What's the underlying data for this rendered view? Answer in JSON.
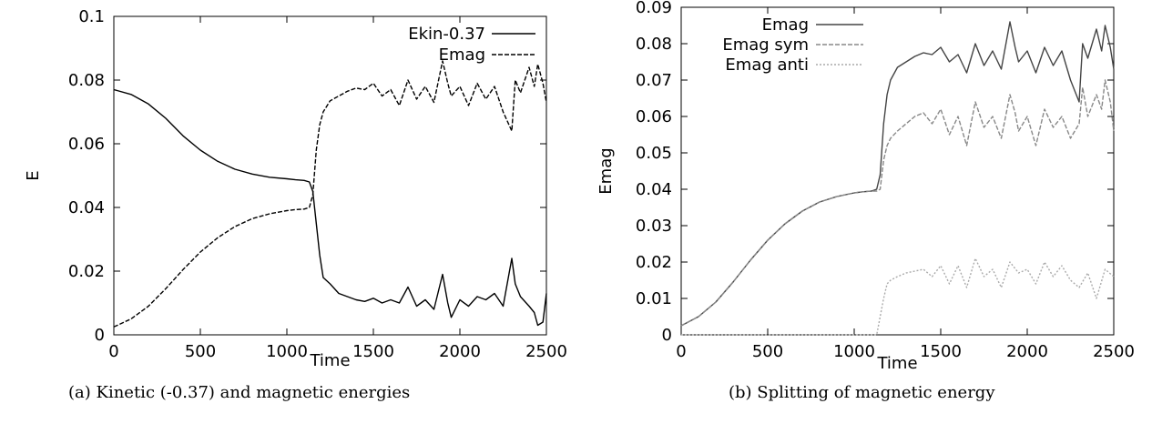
{
  "chart_data": [
    {
      "type": "line",
      "xlabel": "Time",
      "ylabel": "E",
      "caption": "(a) Kinetic (-0.37) and magnetic energies",
      "xlim": [
        0,
        2500
      ],
      "ylim": [
        0,
        0.1
      ],
      "xticks": [
        "0",
        "500",
        "1000",
        "1500",
        "2000",
        "2500"
      ],
      "yticks": [
        "0",
        "0.02",
        "0.04",
        "0.06",
        "0.08",
        "0.1"
      ],
      "legend_position": "top-right",
      "series": [
        {
          "name": "Ekin-0.37",
          "style": "solid",
          "color": "#000000",
          "x": [
            0,
            100,
            200,
            300,
            400,
            500,
            600,
            700,
            800,
            900,
            1000,
            1050,
            1100,
            1130,
            1150,
            1170,
            1190,
            1210,
            1250,
            1300,
            1350,
            1400,
            1450,
            1500,
            1550,
            1600,
            1650,
            1700,
            1750,
            1800,
            1850,
            1900,
            1930,
            1950,
            2000,
            2050,
            2100,
            2150,
            2200,
            2250,
            2300,
            2320,
            2350,
            2400,
            2430,
            2450,
            2480,
            2500
          ],
          "y": [
            0.077,
            0.0755,
            0.0725,
            0.068,
            0.0625,
            0.058,
            0.0545,
            0.052,
            0.0505,
            0.0495,
            0.049,
            0.0487,
            0.0485,
            0.048,
            0.045,
            0.035,
            0.025,
            0.018,
            0.016,
            0.013,
            0.012,
            0.011,
            0.0105,
            0.0115,
            0.01,
            0.011,
            0.01,
            0.015,
            0.009,
            0.011,
            0.008,
            0.019,
            0.01,
            0.0055,
            0.011,
            0.009,
            0.012,
            0.011,
            0.013,
            0.009,
            0.024,
            0.016,
            0.012,
            0.009,
            0.007,
            0.003,
            0.004,
            0.013
          ]
        },
        {
          "name": "Emag",
          "style": "dashed",
          "color": "#000000",
          "x": [
            0,
            100,
            200,
            300,
            400,
            500,
            600,
            700,
            800,
            900,
            1000,
            1050,
            1100,
            1130,
            1150,
            1170,
            1190,
            1210,
            1250,
            1300,
            1350,
            1400,
            1450,
            1500,
            1550,
            1600,
            1650,
            1700,
            1750,
            1800,
            1850,
            1900,
            1930,
            1950,
            2000,
            2050,
            2100,
            2150,
            2200,
            2250,
            2300,
            2320,
            2350,
            2400,
            2430,
            2450,
            2480,
            2500
          ],
          "y": [
            0.0025,
            0.005,
            0.009,
            0.0145,
            0.0205,
            0.026,
            0.0305,
            0.034,
            0.0365,
            0.038,
            0.039,
            0.0393,
            0.0395,
            0.04,
            0.044,
            0.058,
            0.066,
            0.07,
            0.0735,
            0.075,
            0.0765,
            0.0775,
            0.077,
            0.079,
            0.075,
            0.077,
            0.072,
            0.08,
            0.074,
            0.078,
            0.073,
            0.086,
            0.079,
            0.075,
            0.078,
            0.072,
            0.079,
            0.074,
            0.078,
            0.07,
            0.064,
            0.08,
            0.076,
            0.084,
            0.078,
            0.085,
            0.079,
            0.073
          ]
        }
      ]
    },
    {
      "type": "line",
      "xlabel": "Time",
      "ylabel": "Emag",
      "caption": "(b) Splitting of magnetic energy",
      "xlim": [
        0,
        2500
      ],
      "ylim": [
        0,
        0.09
      ],
      "xticks": [
        "0",
        "500",
        "1000",
        "1500",
        "2000",
        "2500"
      ],
      "yticks": [
        "0",
        "0.01",
        "0.02",
        "0.03",
        "0.04",
        "0.05",
        "0.06",
        "0.07",
        "0.08",
        "0.09"
      ],
      "legend_position": "top-left",
      "series": [
        {
          "name": "Emag",
          "style": "solid",
          "color": "#444444",
          "x": [
            0,
            100,
            200,
            300,
            400,
            500,
            600,
            700,
            800,
            900,
            1000,
            1050,
            1100,
            1130,
            1150,
            1170,
            1190,
            1210,
            1250,
            1300,
            1350,
            1400,
            1450,
            1500,
            1550,
            1600,
            1650,
            1700,
            1750,
            1800,
            1850,
            1900,
            1930,
            1950,
            2000,
            2050,
            2100,
            2150,
            2200,
            2250,
            2300,
            2320,
            2350,
            2400,
            2430,
            2450,
            2480,
            2500
          ],
          "y": [
            0.0025,
            0.005,
            0.009,
            0.0145,
            0.0205,
            0.026,
            0.0305,
            0.034,
            0.0365,
            0.038,
            0.039,
            0.0393,
            0.0395,
            0.04,
            0.044,
            0.058,
            0.066,
            0.07,
            0.0735,
            0.075,
            0.0765,
            0.0775,
            0.077,
            0.079,
            0.075,
            0.077,
            0.072,
            0.08,
            0.074,
            0.078,
            0.073,
            0.086,
            0.079,
            0.075,
            0.078,
            0.072,
            0.079,
            0.074,
            0.078,
            0.07,
            0.064,
            0.08,
            0.076,
            0.084,
            0.078,
            0.085,
            0.079,
            0.073
          ]
        },
        {
          "name": "Emag sym",
          "style": "dashed",
          "color": "#888888",
          "x": [
            0,
            100,
            200,
            300,
            400,
            500,
            600,
            700,
            800,
            900,
            1000,
            1050,
            1100,
            1130,
            1150,
            1170,
            1190,
            1210,
            1250,
            1300,
            1350,
            1400,
            1450,
            1500,
            1550,
            1600,
            1650,
            1700,
            1750,
            1800,
            1850,
            1900,
            1930,
            1950,
            2000,
            2050,
            2100,
            2150,
            2200,
            2250,
            2300,
            2320,
            2350,
            2400,
            2430,
            2450,
            2480,
            2500
          ],
          "y": [
            0.0025,
            0.005,
            0.009,
            0.0145,
            0.0205,
            0.026,
            0.0305,
            0.034,
            0.0365,
            0.038,
            0.039,
            0.0393,
            0.0395,
            0.0395,
            0.04,
            0.048,
            0.052,
            0.054,
            0.056,
            0.058,
            0.06,
            0.061,
            0.058,
            0.062,
            0.055,
            0.06,
            0.052,
            0.064,
            0.057,
            0.06,
            0.054,
            0.066,
            0.061,
            0.056,
            0.06,
            0.052,
            0.062,
            0.057,
            0.06,
            0.054,
            0.058,
            0.068,
            0.06,
            0.066,
            0.062,
            0.07,
            0.064,
            0.056
          ]
        },
        {
          "name": "Emag anti",
          "style": "dotted",
          "color": "#aaaaaa",
          "x": [
            0,
            1000,
            1100,
            1130,
            1150,
            1170,
            1190,
            1210,
            1250,
            1300,
            1350,
            1400,
            1450,
            1500,
            1550,
            1600,
            1650,
            1700,
            1750,
            1800,
            1850,
            1900,
            1950,
            2000,
            2050,
            2100,
            2150,
            2200,
            2250,
            2300,
            2350,
            2400,
            2450,
            2500
          ],
          "y": [
            0,
            0,
            0,
            0,
            0.005,
            0.01,
            0.014,
            0.015,
            0.016,
            0.017,
            0.0175,
            0.018,
            0.016,
            0.019,
            0.014,
            0.019,
            0.013,
            0.021,
            0.016,
            0.018,
            0.013,
            0.02,
            0.017,
            0.018,
            0.014,
            0.02,
            0.016,
            0.019,
            0.015,
            0.013,
            0.017,
            0.01,
            0.018,
            0.016
          ]
        }
      ]
    }
  ]
}
